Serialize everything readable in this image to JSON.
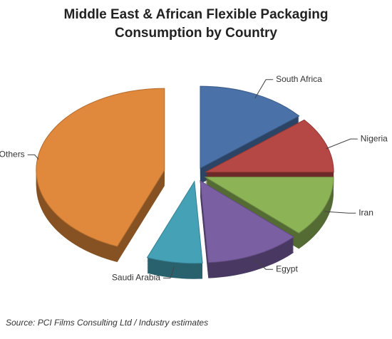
{
  "chart_data": {
    "type": "pie",
    "title": "Middle East & African Flexible Packaging Consumption by Country",
    "categories": [
      "South Africa",
      "Nigeria",
      "Iran",
      "Egypt",
      "Saudi Arabia",
      "Others"
    ],
    "values": [
      14,
      11,
      12,
      12,
      7,
      44
    ],
    "colors": [
      "#4a72a8",
      "#b54845",
      "#8cb356",
      "#7a5fa3",
      "#45a1b6",
      "#e0883b"
    ],
    "source": "Source: PCI Films Consulting Ltd / Industry estimates"
  }
}
